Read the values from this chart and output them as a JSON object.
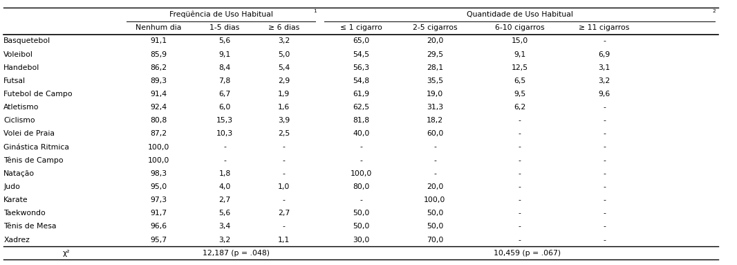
{
  "title_freq": "Freqüência de Uso Habitual",
  "title_qty": "Quantidade de Uso Habitual",
  "sup1": "1",
  "sup2": "2",
  "col_headers": [
    "Nenhum dia",
    "1-5 dias",
    "≥ 6 dias",
    "≤ 1 cigarro",
    "2-5 cigarros",
    "6-10 cigarros",
    "≥ 11 cigarros"
  ],
  "sports": [
    "Basquetebol",
    "Voleibol",
    "Handebol",
    "Futsal",
    "Futebol de Campo",
    "Atletismo",
    "Ciclismo",
    "Volei de Praia",
    "Ginástica Ritmica",
    "Tênis de Campo",
    "Natação",
    "Judo",
    "Karate",
    "Taekwondo",
    "Tênis de Mesa",
    "Xadrez"
  ],
  "data": [
    [
      "91,1",
      "5,6",
      "3,2",
      "65,0",
      "20,0",
      "15,0",
      "-"
    ],
    [
      "85,9",
      "9,1",
      "5,0",
      "54,5",
      "29,5",
      "9,1",
      "6,9"
    ],
    [
      "86,2",
      "8,4",
      "5,4",
      "56,3",
      "28,1",
      "12,5",
      "3,1"
    ],
    [
      "89,3",
      "7,8",
      "2,9",
      "54,8",
      "35,5",
      "6,5",
      "3,2"
    ],
    [
      "91,4",
      "6,7",
      "1,9",
      "61,9",
      "19,0",
      "9,5",
      "9,6"
    ],
    [
      "92,4",
      "6,0",
      "1,6",
      "62,5",
      "31,3",
      "6,2",
      "-"
    ],
    [
      "80,8",
      "15,3",
      "3,9",
      "81,8",
      "18,2",
      "-",
      "-"
    ],
    [
      "87,2",
      "10,3",
      "2,5",
      "40,0",
      "60,0",
      "-",
      "-"
    ],
    [
      "100,0",
      "-",
      "-",
      "-",
      "-",
      "-",
      "-"
    ],
    [
      "100,0",
      "-",
      "-",
      "-",
      "-",
      "-",
      "-"
    ],
    [
      "98,3",
      "1,8",
      "-",
      "100,0",
      "-",
      "-",
      "-"
    ],
    [
      "95,0",
      "4,0",
      "1,0",
      "80,0",
      "20,0",
      "-",
      "-"
    ],
    [
      "97,3",
      "2,7",
      "-",
      "-",
      "100,0",
      "-",
      "-"
    ],
    [
      "91,7",
      "5,6",
      "2,7",
      "50,0",
      "50,0",
      "-",
      "-"
    ],
    [
      "96,6",
      "3,4",
      "-",
      "50,0",
      "50,0",
      "-",
      "-"
    ],
    [
      "95,7",
      "3,2",
      "1,1",
      "30,0",
      "70,0",
      "-",
      "-"
    ]
  ],
  "footer_chi2": "χ²",
  "footer_freq": "12,187 (p = .048)",
  "footer_qty": "10,459 (p = .067)",
  "bg_color": "#ffffff",
  "text_color": "#000000",
  "font_size": 7.8
}
